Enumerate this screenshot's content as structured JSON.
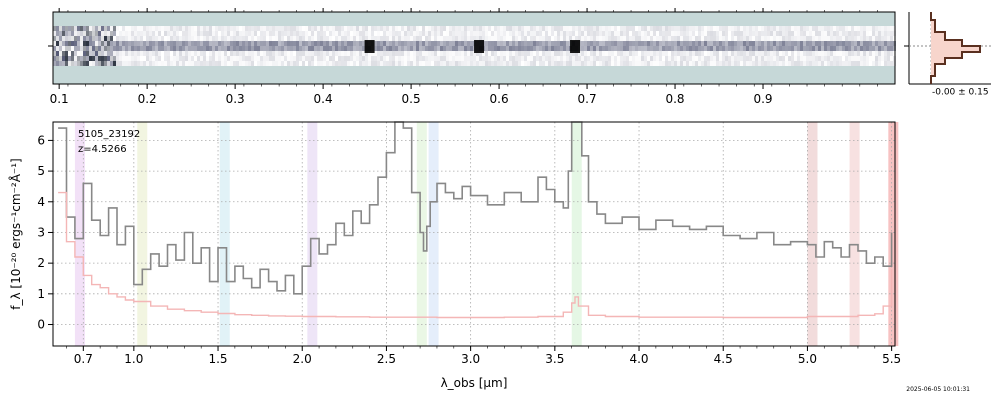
{
  "chart_data": {
    "type": "line",
    "annotation": {
      "object_id": "5105_23192",
      "redshift_label": "z=4.5266"
    },
    "timestamp": "2025-06-05 10:01:31",
    "spectrum_2d": {
      "top_axis_ticks": [
        {
          "value": 0.1,
          "label": "0.1"
        },
        {
          "value": 0.2,
          "label": "0.2"
        },
        {
          "value": 0.3,
          "label": "0.3"
        },
        {
          "value": 0.4,
          "label": "0.4"
        },
        {
          "value": 0.5,
          "label": "0.5"
        },
        {
          "value": 0.6,
          "label": "0.6"
        },
        {
          "value": 0.7,
          "label": "0.7"
        },
        {
          "value": 0.8,
          "label": "0.8"
        },
        {
          "value": 0.9,
          "label": "0.9"
        }
      ],
      "bright_features_um": [
        2.4,
        3.05,
        3.62
      ]
    },
    "profile_inset": {
      "label": "-0.00 ± 0.15",
      "profile_color": "#5a3020",
      "fill_color": "#f7d5cc"
    },
    "xlabel": "λ_obs [μm]",
    "ylabel": "f_λ [10⁻²⁰ ergs⁻¹cm⁻²Å⁻¹]",
    "xlim": [
      0.52,
      5.52
    ],
    "ylim": [
      -0.7,
      6.6
    ],
    "x_ticks": [
      {
        "value": 0.7,
        "label": "0.7"
      },
      {
        "value": 1.0,
        "label": "1.0"
      },
      {
        "value": 1.5,
        "label": "1.5"
      },
      {
        "value": 2.0,
        "label": "2.0"
      },
      {
        "value": 2.5,
        "label": "2.5"
      },
      {
        "value": 3.0,
        "label": "3.0"
      },
      {
        "value": 3.5,
        "label": "3.5"
      },
      {
        "value": 4.0,
        "label": "4.0"
      },
      {
        "value": 4.5,
        "label": "4.5"
      },
      {
        "value": 5.0,
        "label": "5.0"
      },
      {
        "value": 5.5,
        "label": "5.5"
      }
    ],
    "y_ticks": [
      {
        "value": 0,
        "label": "0"
      },
      {
        "value": 1,
        "label": "1"
      },
      {
        "value": 2,
        "label": "2"
      },
      {
        "value": 3,
        "label": "3"
      },
      {
        "value": 4,
        "label": "4"
      },
      {
        "value": 5,
        "label": "5"
      },
      {
        "value": 6,
        "label": "6"
      }
    ],
    "grid": true,
    "line_bands": [
      {
        "x": 0.68,
        "color": "#e8c8f0"
      },
      {
        "x": 1.05,
        "color": "#e8ecc8"
      },
      {
        "x": 1.54,
        "color": "#c8e8f0"
      },
      {
        "x": 2.06,
        "color": "#e0d0f0"
      },
      {
        "x": 2.71,
        "color": "#d8f0d0"
      },
      {
        "x": 2.78,
        "color": "#d0e0f8"
      },
      {
        "x": 3.63,
        "color": "#d0f0d0"
      },
      {
        "x": 5.03,
        "color": "#e8c0c0"
      },
      {
        "x": 5.28,
        "color": "#f0c8c8"
      },
      {
        "x": 5.51,
        "color": "#f09090"
      }
    ],
    "series": [
      {
        "color": "#888888",
        "x": [
          0.55,
          0.6,
          0.65,
          0.7,
          0.75,
          0.8,
          0.85,
          0.9,
          0.95,
          1.0,
          1.05,
          1.1,
          1.15,
          1.2,
          1.25,
          1.3,
          1.35,
          1.4,
          1.45,
          1.5,
          1.55,
          1.6,
          1.65,
          1.7,
          1.75,
          1.8,
          1.85,
          1.9,
          1.95,
          2.0,
          2.05,
          2.1,
          2.15,
          2.2,
          2.25,
          2.3,
          2.35,
          2.4,
          2.45,
          2.5,
          2.55,
          2.6,
          2.65,
          2.7,
          2.72,
          2.74,
          2.76,
          2.8,
          2.85,
          2.9,
          2.95,
          3.0,
          3.1,
          3.2,
          3.3,
          3.4,
          3.45,
          3.5,
          3.55,
          3.58,
          3.6,
          3.62,
          3.64,
          3.66,
          3.7,
          3.75,
          3.8,
          3.9,
          4.0,
          4.1,
          4.2,
          4.3,
          4.4,
          4.5,
          4.6,
          4.7,
          4.8,
          4.9,
          5.0,
          5.05,
          5.1,
          5.15,
          5.2,
          5.25,
          5.3,
          5.35,
          5.4,
          5.45,
          5.5
        ],
        "values": [
          6.4,
          3.5,
          2.8,
          4.6,
          3.4,
          2.9,
          3.8,
          2.6,
          3.2,
          1.3,
          1.8,
          2.3,
          1.9,
          2.6,
          2.1,
          3.0,
          2.0,
          2.5,
          1.4,
          2.5,
          1.4,
          1.9,
          1.5,
          1.2,
          1.8,
          1.4,
          1.1,
          1.6,
          1.0,
          1.9,
          2.8,
          2.3,
          2.6,
          3.3,
          2.9,
          3.7,
          3.3,
          3.9,
          4.8,
          5.6,
          6.6,
          6.4,
          4.3,
          3.0,
          2.4,
          3.2,
          4.0,
          4.6,
          4.3,
          4.1,
          4.5,
          4.2,
          3.9,
          4.3,
          4.0,
          4.8,
          4.4,
          4.0,
          3.8,
          5.0,
          6.6,
          6.6,
          6.6,
          5.5,
          4.0,
          3.6,
          3.3,
          3.5,
          3.1,
          3.4,
          3.2,
          3.1,
          3.2,
          2.9,
          2.8,
          3.0,
          2.6,
          2.7,
          2.6,
          2.2,
          2.7,
          2.5,
          2.2,
          2.6,
          2.4,
          2.0,
          2.2,
          1.9,
          3.0
        ]
      },
      {
        "color": "#f4b6b6",
        "x": [
          0.55,
          0.6,
          0.65,
          0.7,
          0.75,
          0.8,
          0.85,
          0.9,
          0.95,
          1.0,
          1.1,
          1.2,
          1.3,
          1.4,
          1.5,
          1.6,
          1.7,
          1.8,
          1.9,
          2.0,
          2.2,
          2.4,
          2.6,
          2.8,
          3.0,
          3.2,
          3.4,
          3.55,
          3.6,
          3.62,
          3.64,
          3.7,
          3.8,
          4.0,
          4.5,
          5.0,
          5.3,
          5.4,
          5.45,
          5.5
        ],
        "values": [
          4.3,
          2.7,
          2.2,
          1.6,
          1.3,
          1.2,
          1.0,
          0.9,
          0.8,
          0.75,
          0.6,
          0.5,
          0.45,
          0.4,
          0.36,
          0.32,
          0.3,
          0.28,
          0.27,
          0.26,
          0.25,
          0.24,
          0.24,
          0.23,
          0.23,
          0.24,
          0.26,
          0.4,
          0.7,
          0.9,
          0.6,
          0.3,
          0.26,
          0.24,
          0.23,
          0.26,
          0.3,
          0.35,
          0.6,
          1.8
        ]
      }
    ]
  }
}
